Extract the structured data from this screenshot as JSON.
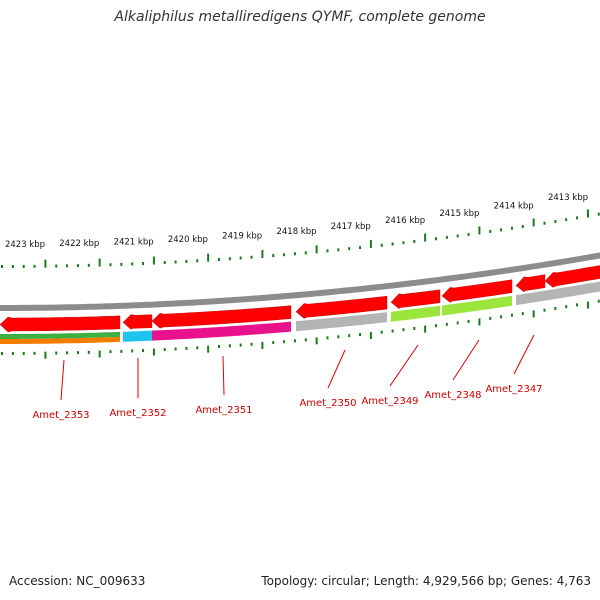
{
  "title": "Alkaliphilus metalliredigens QYMF, complete genome",
  "accession": "Accession: NC_009633",
  "summary": "Topology: circular; Length: 4,929,566 bp; Genes: 4,763",
  "colors": {
    "backbone": "#8c8c8c",
    "forward_gene": "#ff0000",
    "tick": "#1a7a1a",
    "label_line": "#dd0000",
    "label_text": "#cc0000",
    "cog_green": "#3cb043",
    "cog_orange": "#f07c00",
    "cog_cyan": "#1ec3f0",
    "cog_magenta": "#e8128c",
    "cog_gray": "#b4b4b4",
    "cog_lime": "#9be63c"
  },
  "scale_labels": [
    "2423 kbp",
    "2422 kbp",
    "2421 kbp",
    "2420 kbp",
    "2419 kbp",
    "2418 kbp",
    "2417 kbp",
    "2416 kbp",
    "2415 kbp",
    "2414 kbp",
    "2413 kbp"
  ],
  "genes": [
    {
      "name": "Amet_2353",
      "cog_color": "cog_green",
      "cog_color2": "cog_orange"
    },
    {
      "name": "Amet_2352",
      "cog_color": "cog_cyan"
    },
    {
      "name": "Amet_2351",
      "cog_color": "cog_magenta"
    },
    {
      "name": "Amet_2350",
      "cog_color": "cog_gray"
    },
    {
      "name": "Amet_2349",
      "cog_color": "cog_lime"
    },
    {
      "name": "Amet_2348",
      "cog_color": "cog_lime"
    },
    {
      "name": "Amet_2347",
      "cog_color": "cog_gray"
    },
    {
      "name": "",
      "cog_color": "cog_gray"
    }
  ]
}
